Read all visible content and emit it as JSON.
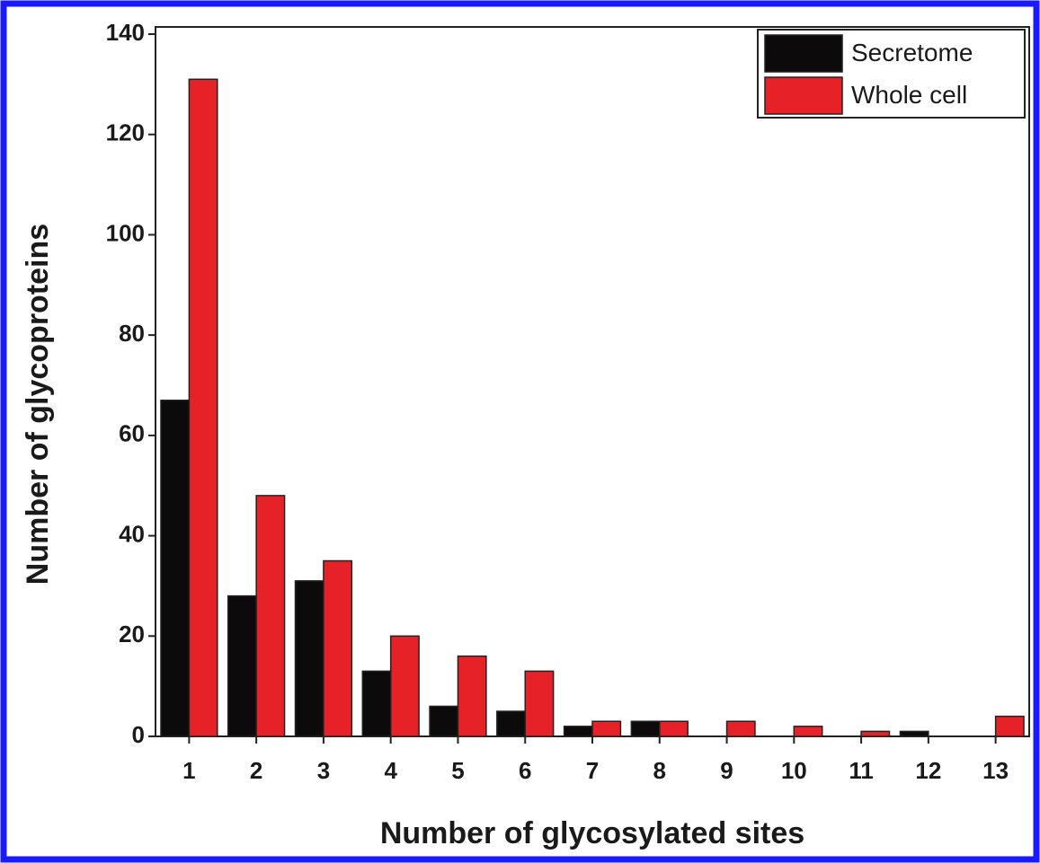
{
  "chart_data": {
    "type": "bar",
    "x_label": "Number of glycosylated sites",
    "y_label": "Number of glycoproteins",
    "categories": [
      1,
      2,
      3,
      4,
      5,
      6,
      7,
      8,
      9,
      10,
      11,
      12,
      13
    ],
    "series": [
      {
        "name": "Secretome",
        "color": "#0d0a0c",
        "values": [
          67,
          28,
          31,
          13,
          6,
          5,
          2,
          3,
          0,
          0,
          0,
          1,
          0
        ]
      },
      {
        "name": "Whole cell",
        "color": "#e62228",
        "values": [
          131,
          48,
          35,
          20,
          16,
          13,
          3,
          3,
          3,
          2,
          1,
          0,
          4
        ]
      }
    ],
    "ylim": [
      0,
      140
    ],
    "yticks": [
      0,
      20,
      40,
      60,
      80,
      100,
      120,
      140
    ],
    "legend": "upper right"
  }
}
